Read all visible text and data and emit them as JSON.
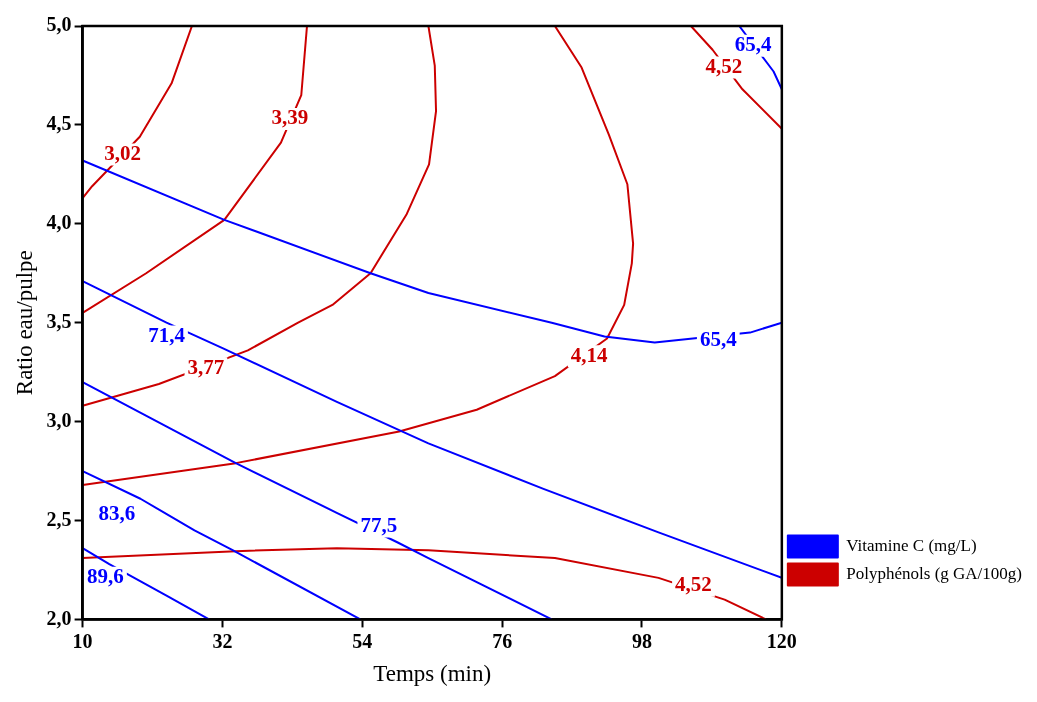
{
  "chart_data": {
    "type": "line",
    "xlabel": "Temps (min)",
    "ylabel": "Ratio eau/pulpe",
    "xlim": [
      10,
      120
    ],
    "ylim": [
      2,
      5
    ],
    "xticks": [
      10,
      32,
      54,
      76,
      98,
      120
    ],
    "yticks": [
      {
        "value": 2,
        "label": "2,0"
      },
      {
        "value": 2.5,
        "label": "2,5"
      },
      {
        "value": 3,
        "label": "3,0"
      },
      {
        "value": 3.5,
        "label": "3,5"
      },
      {
        "value": 4,
        "label": "4,0"
      },
      {
        "value": 4.5,
        "label": "4,5"
      },
      {
        "value": 5,
        "label": "5,0"
      }
    ],
    "legend": "bottom right",
    "grid": false,
    "series": [
      {
        "name": "Vitamine C (mg/L)",
        "color": "#0000ff",
        "x": [
          10,
          32.3,
          55.3,
          64.4,
          83.8,
          92.1,
          100,
          115,
          120,
          null,
          113.3,
          118.7,
          120,
          null,
          10,
          23.2,
          32.1,
          50,
          64.4,
          82.5,
          100.6,
          120,
          null,
          10,
          34.1,
          49.9,
          59.5,
          64.4,
          83.8,
          null,
          10,
          19.1,
          27.6,
          33.6,
          53.7,
          null,
          10,
          14.2,
          23.2,
          29.9
        ],
        "values": [
          4.32,
          4.02,
          3.75,
          3.65,
          3.5,
          3.43,
          3.4,
          3.45,
          3.5,
          null,
          5.0,
          4.77,
          4.68,
          null,
          3.71,
          3.5,
          3.37,
          3.1,
          2.89,
          2.66,
          2.44,
          2.21,
          null,
          3.2,
          2.79,
          2.54,
          2.39,
          2.31,
          2.0,
          null,
          2.75,
          2.61,
          2.45,
          2.35,
          2.0,
          null,
          2.36,
          2.28,
          2.12,
          2.0
        ]
      },
      {
        "name": "Polyphénols (g GA/100g)",
        "color": "#cc0000",
        "x": [
          10,
          11.5,
          19,
          24,
          27.2,
          null,
          10,
          20,
          32.3,
          41.2,
          44.4,
          45.3,
          null,
          10,
          22,
          36,
          43.9,
          49.3,
          55.3,
          61,
          64.5,
          65.6,
          65.4,
          64.4,
          null,
          10,
          34.1,
          59.8,
          72,
          84.3,
          92.5,
          95.2,
          96.4,
          96.6,
          95.7,
          92.8,
          88.5,
          84.3,
          null,
          10,
          34.1,
          50,
          64.4,
          84.3,
          100.6,
          111,
          117.5,
          null,
          105.7,
          109.1,
          113.8,
          120
        ],
        "values": [
          4.13,
          4.19,
          4.44,
          4.71,
          5.0,
          null,
          3.55,
          3.75,
          4.02,
          4.41,
          4.65,
          5.0,
          null,
          3.08,
          3.19,
          3.36,
          3.5,
          3.59,
          3.75,
          4.05,
          4.3,
          4.57,
          4.8,
          5.0,
          null,
          2.68,
          2.79,
          2.95,
          3.06,
          3.23,
          3.42,
          3.59,
          3.8,
          3.9,
          4.2,
          4.45,
          4.79,
          5.0,
          null,
          2.31,
          2.345,
          2.36,
          2.35,
          2.31,
          2.21,
          2.1,
          2.0,
          null,
          5.0,
          4.88,
          4.68,
          4.48
        ]
      }
    ],
    "annotations": [
      {
        "text": "3,02",
        "x": 16.3,
        "y": 4.35
      },
      {
        "text": "3,39",
        "x": 42.6,
        "y": 4.53
      },
      {
        "text": "3,77",
        "x": 29.4,
        "y": 3.27
      },
      {
        "text": "4,14",
        "x": 89.7,
        "y": 3.33
      },
      {
        "text": "4,52",
        "x": 106.1,
        "y": 2.17
      },
      {
        "text": "4,52",
        "x": 110.9,
        "y": 4.79
      },
      {
        "text": "65,4",
        "x": 110,
        "y": 3.41
      },
      {
        "text": "65,4",
        "x": 115.5,
        "y": 4.9
      },
      {
        "text": "71,4",
        "x": 23.2,
        "y": 3.43
      },
      {
        "text": "77,5",
        "x": 56.6,
        "y": 2.47
      },
      {
        "text": "83,6",
        "x": 15.4,
        "y": 2.53
      },
      {
        "text": "89,6",
        "x": 13.6,
        "y": 2.21
      }
    ]
  }
}
